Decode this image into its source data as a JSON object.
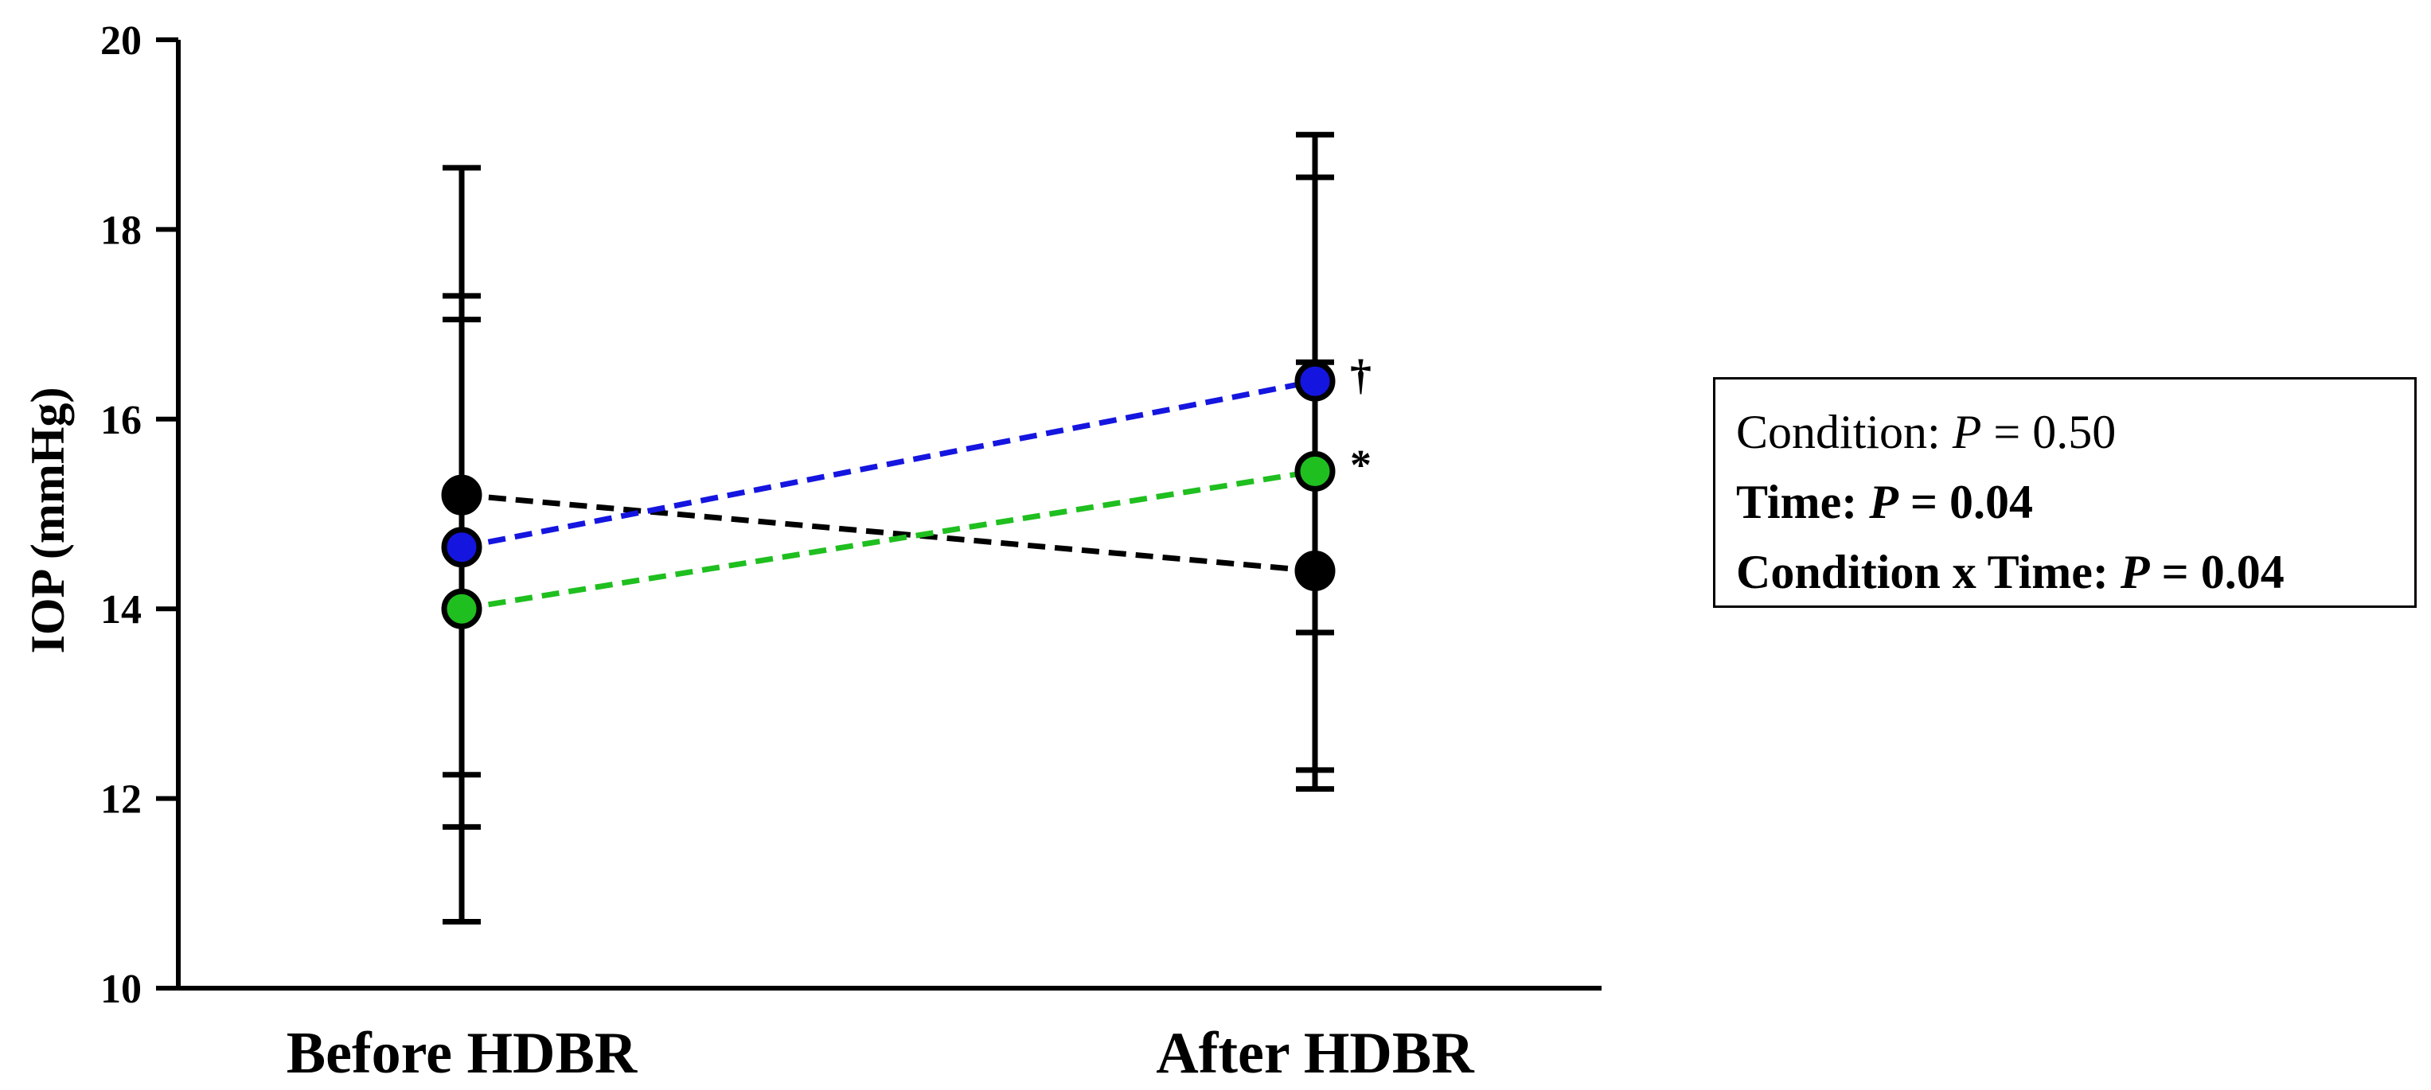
{
  "chart_data": {
    "type": "line",
    "title": "",
    "xlabel": "",
    "ylabel": "IOP (mmHg)",
    "ylim": [
      10,
      20
    ],
    "yticks": [
      "10",
      "12",
      "14",
      "16",
      "18",
      "20"
    ],
    "categories": [
      "Before HDBR",
      "After HDBR"
    ],
    "series": [
      {
        "color": "#000000",
        "values": [
          15.2,
          14.4
        ],
        "error_low": [
          11.7,
          12.1
        ],
        "error_high": [
          18.65,
          16.6
        ],
        "annotations": [
          "",
          ""
        ]
      },
      {
        "color": "#1515e0",
        "values": [
          14.65,
          16.4
        ],
        "error_low": [
          10.7,
          13.75
        ],
        "error_high": [
          17.3,
          19.0
        ],
        "annotations": [
          "",
          "†"
        ]
      },
      {
        "color": "#1fbf1f",
        "values": [
          14.0,
          15.45
        ],
        "error_low": [
          12.25,
          12.3
        ],
        "error_high": [
          17.05,
          18.55
        ],
        "annotations": [
          "",
          "*"
        ]
      }
    ],
    "stats": {
      "condition_label": "Condition:",
      "condition_p": "P",
      "condition_value": "= 0.50",
      "time_label": "Time:",
      "time_p": "P",
      "time_value": "= 0.04",
      "interaction_label": "Condition x Time:",
      "interaction_p": "P",
      "interaction_value": "= 0.04"
    }
  }
}
